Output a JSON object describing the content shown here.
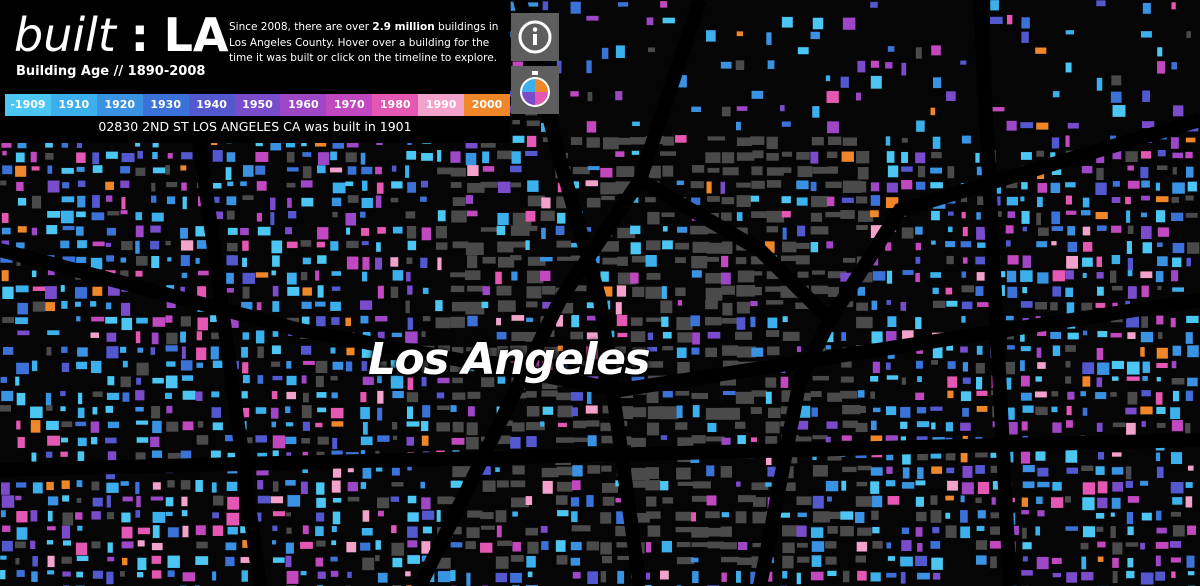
{
  "header": {
    "title": {
      "word": "built",
      "separator": ":",
      "place": "LA"
    },
    "subtitle": "Building Age // 1890-2008",
    "description": [
      "Since 2008, there are over ",
      "2.9 million",
      " buildings in Los Angeles County. Hover over a building for the time it was built or click on the timeline to explore."
    ]
  },
  "legend": [
    {
      "label": "-1909",
      "color": "#4cc6f2"
    },
    {
      "label": "1910",
      "color": "#3cb0ec"
    },
    {
      "label": "1920",
      "color": "#3a92e2"
    },
    {
      "label": "1930",
      "color": "#3b72d8"
    },
    {
      "label": "1940",
      "color": "#5358cf"
    },
    {
      "label": "1950",
      "color": "#7a4ccc"
    },
    {
      "label": "1960",
      "color": "#9d46c6"
    },
    {
      "label": "1970",
      "color": "#c248bf"
    },
    {
      "label": "1980",
      "color": "#e457b2"
    },
    {
      "label": "1990",
      "color": "#f3a2cb"
    },
    {
      "label": "2000",
      "color": "#f0862a"
    }
  ],
  "status": "02830 2ND ST LOS ANGELES CA was built in 1901",
  "map": {
    "label": "Los Angeles"
  }
}
